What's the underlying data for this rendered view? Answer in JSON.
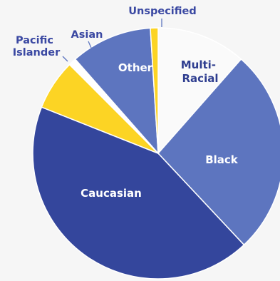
{
  "chart_data": {
    "type": "pie",
    "start": "top",
    "direction": "clockwise",
    "slices": [
      {
        "label": "Multi-Racial",
        "value": 11.5,
        "color": "#fafafa"
      },
      {
        "label": "Black",
        "value": 26.5,
        "color": "#5d75bf"
      },
      {
        "label": "Caucasian",
        "value": 43.0,
        "color": "#34469c"
      },
      {
        "label": "Pacific Islander",
        "value": 6.5,
        "color": "#fcd424"
      },
      {
        "label": "Asian",
        "value": 1.0,
        "color": "#ffffff"
      },
      {
        "label": "Other",
        "value": 10.5,
        "color": "#5d75bf"
      },
      {
        "label": "Unspecified",
        "value": 1.0,
        "color": "#fcd424"
      }
    ]
  },
  "labels": {
    "multi_line1": "Multi-",
    "multi_line2": "Racial",
    "black": "Black",
    "caucasian": "Caucasian",
    "other": "Other",
    "asian": "Asian",
    "pacific_line1": "Pacific",
    "pacific_line2": "Islander",
    "unspecified": "Unspecified"
  },
  "colors": {
    "background": "#f6f6f6",
    "outside_label": "#3a48a2",
    "inside_label_light": "#ffffff",
    "inside_label_dark": "#2e3d8f",
    "leader_line": "#5d75bf"
  }
}
